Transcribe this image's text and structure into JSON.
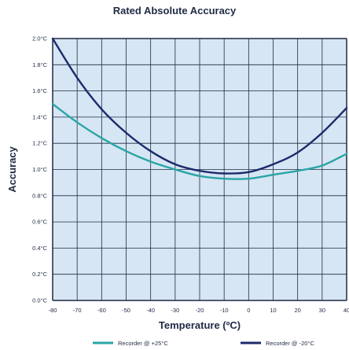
{
  "chart_data": {
    "type": "line",
    "title": "Rated Absolute Accuracy",
    "xlabel": "Temperature (ºC)",
    "ylabel": "Accuracy",
    "x_ticks": [
      "-80",
      "-70",
      "-60",
      "-50",
      "-40",
      "-30",
      "-20",
      "-10",
      "0",
      "10",
      "20",
      "30",
      "40"
    ],
    "y_ticks": [
      "0.0°C",
      "0.2°C",
      "0.4°C",
      "0.6°C",
      "0.8°C",
      "1.0°C",
      "1.2°C",
      "1.4°C",
      "1.6°C",
      "1.8°C",
      "2.0°C"
    ],
    "xlim": [
      -80,
      40
    ],
    "ylim": [
      0,
      2.0
    ],
    "grid": true,
    "legend_position": "bottom",
    "background_color": "#d6e6f4",
    "series": [
      {
        "name": "Recorder @ +25°C",
        "color": "#2aa5a5",
        "x": [
          -80,
          -70,
          -60,
          -50,
          -40,
          -30,
          -20,
          -10,
          0,
          10,
          20,
          30,
          40
        ],
        "values": [
          1.5,
          1.36,
          1.24,
          1.14,
          1.06,
          1.0,
          0.95,
          0.93,
          0.93,
          0.96,
          0.99,
          1.03,
          1.12
        ]
      },
      {
        "name": "Recorder @ -20°C",
        "color": "#1c2a6b",
        "x": [
          -80,
          -70,
          -60,
          -50,
          -40,
          -30,
          -20,
          -10,
          0,
          10,
          20,
          30,
          40
        ],
        "values": [
          2.0,
          1.7,
          1.46,
          1.28,
          1.14,
          1.04,
          0.99,
          0.97,
          0.98,
          1.04,
          1.13,
          1.28,
          1.47
        ]
      }
    ]
  }
}
